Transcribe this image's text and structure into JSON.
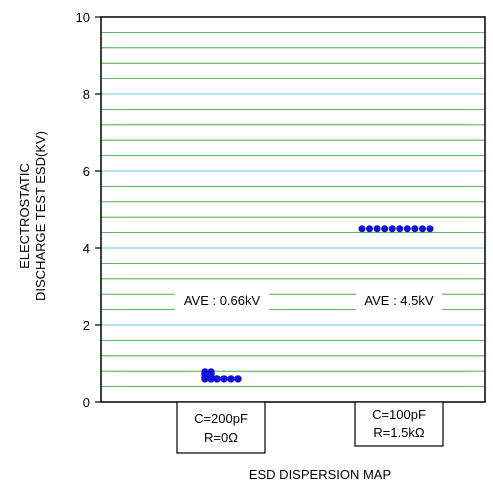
{
  "chart_data": {
    "type": "scatter",
    "title": "",
    "xlabel": "ESD DISPERSION MAP",
    "ylabel_lines": [
      "ELECTROSTATIC",
      "DISCHARGE TEST ESD(KV)"
    ],
    "ylim": [
      0,
      10
    ],
    "yticks": [
      "0",
      "2",
      "4",
      "6",
      "8",
      "10"
    ],
    "grid": true,
    "colors": {
      "points": "#1010d8",
      "major_grid": "#8ecfe8",
      "minor_grid": "#2ea02e",
      "frame": "#000000"
    },
    "categories": [
      {
        "line1": "C=200pF",
        "line2": "R=0Ω"
      },
      {
        "line1": "C=100pF",
        "line2": "R=1.5kΩ"
      }
    ],
    "annotations": [
      "AVE : 0.66kV",
      "AVE : 4.5kV"
    ],
    "series": [
      {
        "points": [
          {
            "x": 0,
            "y": 0.78
          },
          {
            "x": 0,
            "y": 0.72
          },
          {
            "x": 0,
            "y": 0.65
          },
          {
            "x": 0,
            "y": 0.6
          },
          {
            "x": 0,
            "y": 0.78
          },
          {
            "x": 0,
            "y": 0.72
          },
          {
            "x": 0,
            "y": 0.65
          },
          {
            "x": 0,
            "y": 0.6
          },
          {
            "x": 0,
            "y": 0.6
          },
          {
            "x": 0,
            "y": 0.6
          },
          {
            "x": 0,
            "y": 0.6
          },
          {
            "x": 0,
            "y": 0.6
          }
        ]
      },
      {
        "points": [
          {
            "x": 1,
            "y": 4.5
          },
          {
            "x": 1,
            "y": 4.5
          },
          {
            "x": 1,
            "y": 4.5
          },
          {
            "x": 1,
            "y": 4.5
          },
          {
            "x": 1,
            "y": 4.5
          },
          {
            "x": 1,
            "y": 4.5
          },
          {
            "x": 1,
            "y": 4.5
          },
          {
            "x": 1,
            "y": 4.5
          },
          {
            "x": 1,
            "y": 4.5
          },
          {
            "x": 1,
            "y": 4.5
          }
        ]
      }
    ]
  }
}
